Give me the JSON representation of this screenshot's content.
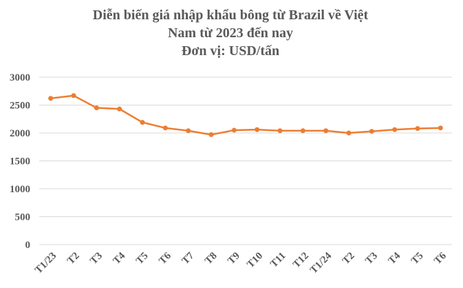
{
  "chart_data": {
    "type": "line",
    "title": [
      "Diễn biến giá nhập khẩu bông từ Brazil về Việt",
      "Nam từ 2023 đến nay",
      "Đơn vị: USD/tấn"
    ],
    "categories": [
      "T1/23",
      "T2",
      "T3",
      "T4",
      "T5",
      "T6",
      "T7",
      "T8",
      "T9",
      "T10",
      "T11",
      "T12",
      "T1/24",
      "T2",
      "T3",
      "T4",
      "T5",
      "T6"
    ],
    "values": [
      2620,
      2670,
      2450,
      2430,
      2190,
      2090,
      2040,
      1970,
      2050,
      2060,
      2040,
      2040,
      2040,
      2000,
      2030,
      2060,
      2080,
      2090
    ],
    "color": "#ed7d31",
    "ylim": [
      0,
      3000
    ],
    "yticks": [
      0,
      500,
      1000,
      1500,
      2000,
      2500,
      3000
    ],
    "grid": true
  }
}
